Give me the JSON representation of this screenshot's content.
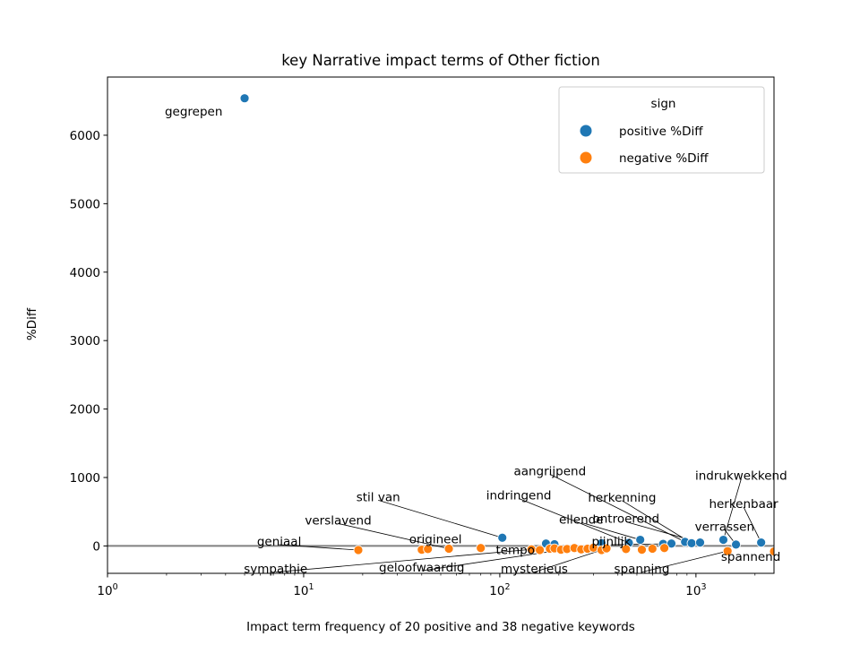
{
  "chart_data": {
    "type": "scatter",
    "title": "key Narrative impact terms of Other fiction",
    "xlabel": "Impact term frequency of 20 positive and 38 negative keywords",
    "ylabel": "%Diff",
    "xscale": "log",
    "xlim": [
      1,
      2500
    ],
    "ylim": [
      -400,
      6850
    ],
    "x_ticks": [
      {
        "value": 1,
        "base": "10",
        "exp": "0"
      },
      {
        "value": 10,
        "base": "10",
        "exp": "1"
      },
      {
        "value": 100,
        "base": "10",
        "exp": "2"
      },
      {
        "value": 1000,
        "base": "10",
        "exp": "3"
      }
    ],
    "y_ticks": [
      0,
      1000,
      2000,
      3000,
      4000,
      5000,
      6000
    ],
    "hline": 0,
    "legend": {
      "title": "sign",
      "position": "top-right",
      "entries": [
        {
          "label": "positive %Diff",
          "color": "#1f77b4"
        },
        {
          "label": "negative %Diff",
          "color": "#ff7f0e"
        }
      ]
    },
    "series": [
      {
        "name": "positive %Diff",
        "color": "#1f77b4",
        "points": [
          {
            "x": 5,
            "y": 6540
          },
          {
            "x": 103,
            "y": 120
          },
          {
            "x": 172,
            "y": 35
          },
          {
            "x": 190,
            "y": 25
          },
          {
            "x": 330,
            "y": 40
          },
          {
            "x": 455,
            "y": 45
          },
          {
            "x": 520,
            "y": 90
          },
          {
            "x": 680,
            "y": 30
          },
          {
            "x": 750,
            "y": 35
          },
          {
            "x": 880,
            "y": 60
          },
          {
            "x": 950,
            "y": 40
          },
          {
            "x": 1050,
            "y": 50
          },
          {
            "x": 1380,
            "y": 90
          },
          {
            "x": 1600,
            "y": 20
          },
          {
            "x": 2150,
            "y": 50
          }
        ]
      },
      {
        "name": "negative %Diff",
        "color": "#ff7f0e",
        "points": [
          {
            "x": 19,
            "y": -60
          },
          {
            "x": 40,
            "y": -55
          },
          {
            "x": 43,
            "y": -45
          },
          {
            "x": 55,
            "y": -40
          },
          {
            "x": 80,
            "y": -30
          },
          {
            "x": 145,
            "y": -50
          },
          {
            "x": 160,
            "y": -60
          },
          {
            "x": 180,
            "y": -40
          },
          {
            "x": 190,
            "y": -35
          },
          {
            "x": 205,
            "y": -55
          },
          {
            "x": 220,
            "y": -45
          },
          {
            "x": 240,
            "y": -30
          },
          {
            "x": 260,
            "y": -50
          },
          {
            "x": 280,
            "y": -40
          },
          {
            "x": 300,
            "y": -25
          },
          {
            "x": 330,
            "y": -60
          },
          {
            "x": 350,
            "y": -35
          },
          {
            "x": 440,
            "y": -45
          },
          {
            "x": 530,
            "y": -55
          },
          {
            "x": 600,
            "y": -40
          },
          {
            "x": 690,
            "y": -30
          },
          {
            "x": 1450,
            "y": -75
          },
          {
            "x": 2500,
            "y": -80
          }
        ]
      }
    ],
    "annotations": [
      {
        "text": "gegrepen",
        "x": 5,
        "y": 6540,
        "text_x": 2.75,
        "text_y": 6350,
        "anchor": "middle",
        "arrow": false
      },
      {
        "text": "aangrijpend",
        "x": 880,
        "y": 60,
        "text_x": 180,
        "text_y": 1100,
        "anchor": "middle",
        "arrow": true
      },
      {
        "text": "indrukwekkend",
        "x": 1380,
        "y": 90,
        "text_x": 1700,
        "text_y": 1030,
        "anchor": "middle",
        "arrow": true
      },
      {
        "text": "stil van",
        "x": 103,
        "y": 120,
        "text_x": 24,
        "text_y": 720,
        "anchor": "middle",
        "arrow": true
      },
      {
        "text": "indringend",
        "x": 455,
        "y": 45,
        "text_x": 125,
        "text_y": 745,
        "anchor": "middle",
        "arrow": true
      },
      {
        "text": "herkenning",
        "x": 950,
        "y": 40,
        "text_x": 420,
        "text_y": 715,
        "anchor": "middle",
        "arrow": true
      },
      {
        "text": "herkenbaar",
        "x": 2150,
        "y": 50,
        "text_x": 1750,
        "text_y": 620,
        "anchor": "middle",
        "arrow": true
      },
      {
        "text": "verslavend",
        "x": 55,
        "y": -40,
        "text_x": 15,
        "text_y": 380,
        "anchor": "middle",
        "arrow": true
      },
      {
        "text": "ellende",
        "x": 520,
        "y": 90,
        "text_x": 260,
        "text_y": 395,
        "anchor": "middle",
        "arrow": true
      },
      {
        "text": "ontroerend",
        "x": 1050,
        "y": 50,
        "text_x": 440,
        "text_y": 405,
        "anchor": "middle",
        "arrow": true
      },
      {
        "text": "verrassen",
        "x": 1600,
        "y": 20,
        "text_x": 1400,
        "text_y": 290,
        "anchor": "middle",
        "arrow": true
      },
      {
        "text": "geniaal",
        "x": 19,
        "y": -60,
        "text_x": 7.5,
        "text_y": 70,
        "anchor": "middle",
        "arrow": true
      },
      {
        "text": "origineel",
        "x": 80,
        "y": -30,
        "text_x": 47,
        "text_y": 105,
        "anchor": "middle",
        "arrow": false
      },
      {
        "text": "pijnlijk",
        "x": 680,
        "y": 30,
        "text_x": 370,
        "text_y": 70,
        "anchor": "middle",
        "arrow": true
      },
      {
        "text": "tempo",
        "x": 160,
        "y": -60,
        "text_x": 120,
        "text_y": -50,
        "anchor": "middle",
        "arrow": false
      },
      {
        "text": "spannend",
        "x": 2500,
        "y": -80,
        "text_x": 2700,
        "text_y": -150,
        "anchor": "end",
        "arrow": false
      },
      {
        "text": "sympathie",
        "x": 145,
        "y": -50,
        "text_x": 7.2,
        "text_y": -330,
        "anchor": "middle",
        "arrow": true
      },
      {
        "text": "geloofwaardig",
        "x": 240,
        "y": -30,
        "text_x": 40,
        "text_y": -310,
        "anchor": "middle",
        "arrow": true
      },
      {
        "text": "mysterieus",
        "x": 330,
        "y": -60,
        "text_x": 150,
        "text_y": -330,
        "anchor": "middle",
        "arrow": true
      },
      {
        "text": "spanning",
        "x": 1450,
        "y": -75,
        "text_x": 530,
        "text_y": -330,
        "anchor": "middle",
        "arrow": true
      }
    ]
  }
}
